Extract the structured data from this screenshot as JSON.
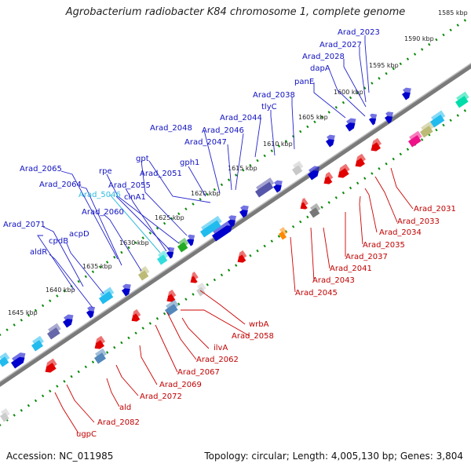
{
  "title": "Agrobacterium radiobacter K84 chromosome 1, complete genome",
  "footer": {
    "accession": "Accession: NC_011985",
    "topology": "Topology: circular; Length: 4,005,130 bp; Genes: 3,804"
  },
  "kbp_ticks": [
    "1585 kbp",
    "1590 kbp",
    "1595 kbp",
    "1600 kbp",
    "1605 kbp",
    "1610 kbp",
    "1615 kbp",
    "1620 kbp",
    "1625 kbp",
    "1630 kbp",
    "1635 kbp",
    "1640 kbp",
    "1645 kbp"
  ],
  "blue_labels": [
    "Arad_2023",
    "Arad_2027",
    "Arad_2028",
    "dapA",
    "panE",
    "Arad_2038",
    "tlyC",
    "Arad_2044",
    "Arad_2046",
    "Arad_2047",
    "Arad_2048",
    "gpt",
    "gph1",
    "Arad_2051",
    "rpe",
    "Arad_2055",
    "cinA1",
    "Arad_2065",
    "Arad_2064",
    "Arad_5046",
    "Arad_2060",
    "Arad_2071",
    "cpdB",
    "acpD",
    "aldR"
  ],
  "red_labels": [
    "Arad_2031",
    "Arad_2033",
    "Arad_2034",
    "Arad_2035",
    "Arad_2037",
    "Arad_2041",
    "Arad_2043",
    "Arad_2045",
    "wrbA",
    "Arad_2058",
    "ilvA",
    "Arad_2062",
    "Arad_2067",
    "Arad_2069",
    "Arad_2072",
    "ald",
    "Arad_2082",
    "ugpC"
  ],
  "colors": {
    "forward_gene": "#0000cc",
    "reverse_gene": "#e00000",
    "highlight_label": "#33bbdd",
    "tick": "#0a8a0a",
    "backbone": "#7a7a7a"
  }
}
